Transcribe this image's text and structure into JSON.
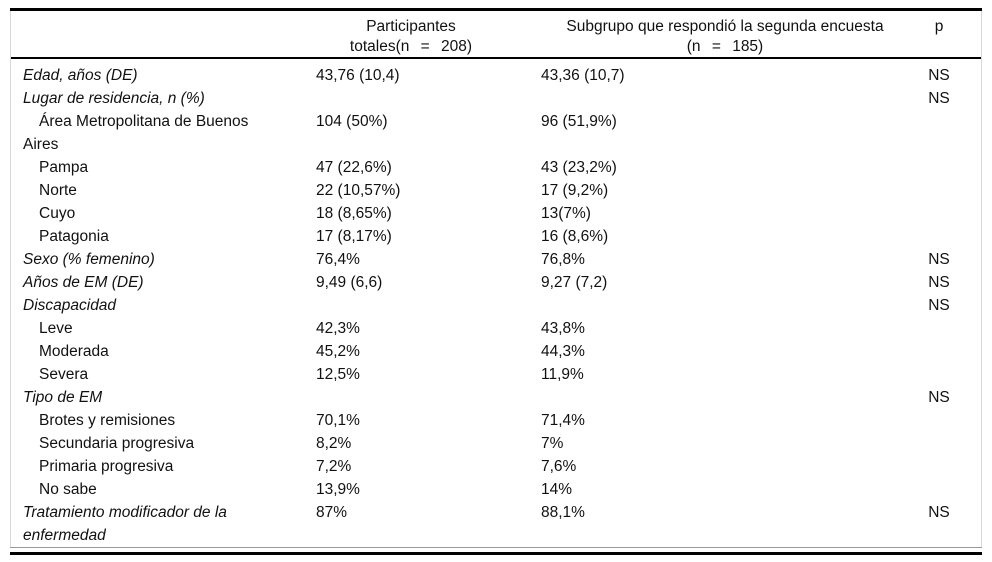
{
  "table": {
    "header": {
      "col_total_line1": "Participantes",
      "col_total_line2": "totales(n = 208)",
      "col_subgroup_line1": "Subgrupo que respondió la segunda encuesta",
      "col_subgroup_line2": "(n = 185)",
      "col_p": "p"
    },
    "rows": [
      {
        "label": "Edad, años (DE)",
        "total": "43,76 (10,4)",
        "subgroup": "43,36 (10,7)",
        "p": "NS"
      },
      {
        "label": "Lugar de residencia, n (%)",
        "total": "",
        "subgroup": "",
        "p": "NS"
      },
      {
        "label": "Área Metropolitana de Buenos",
        "label2": "Aires",
        "total": "104 (50%)",
        "subgroup": "96 (51,9%)",
        "p": ""
      },
      {
        "label": "Pampa",
        "total": "47 (22,6%)",
        "subgroup": "43 (23,2%)",
        "p": ""
      },
      {
        "label": "Norte",
        "total": "22 (10,57%)",
        "subgroup": "17 (9,2%)",
        "p": ""
      },
      {
        "label": "Cuyo",
        "total": "18 (8,65%)",
        "subgroup": "13(7%)",
        "p": ""
      },
      {
        "label": "Patagonia",
        "total": "17 (8,17%)",
        "subgroup": "16 (8,6%)",
        "p": ""
      },
      {
        "label": "Sexo (% femenino)",
        "total": "76,4%",
        "subgroup": "76,8%",
        "p": "NS"
      },
      {
        "label": "Años de EM (DE)",
        "total": "9,49 (6,6)",
        "subgroup": "9,27 (7,2)",
        "p": "NS"
      },
      {
        "label": "Discapacidad",
        "total": "",
        "subgroup": "",
        "p": "NS"
      },
      {
        "label": "Leve",
        "total": "42,3%",
        "subgroup": "43,8%",
        "p": ""
      },
      {
        "label": "Moderada",
        "total": "45,2%",
        "subgroup": "44,3%",
        "p": ""
      },
      {
        "label": "Severa",
        "total": "12,5%",
        "subgroup": "11,9%",
        "p": ""
      },
      {
        "label": "Tipo de EM",
        "total": "",
        "subgroup": "",
        "p": "NS"
      },
      {
        "label": "Brotes y remisiones",
        "total": "70,1%",
        "subgroup": "71,4%",
        "p": ""
      },
      {
        "label": "Secundaria progresiva",
        "total": "8,2%",
        "subgroup": "7%",
        "p": ""
      },
      {
        "label": "Primaria progresiva",
        "total": "7,2%",
        "subgroup": "7,6%",
        "p": ""
      },
      {
        "label": "No sabe",
        "total": "13,9%",
        "subgroup": "14%",
        "p": ""
      },
      {
        "label": "Tratamiento modificador de la",
        "label2": "enfermedad",
        "total": "87%",
        "subgroup": "88,1%",
        "p": "NS"
      }
    ]
  }
}
